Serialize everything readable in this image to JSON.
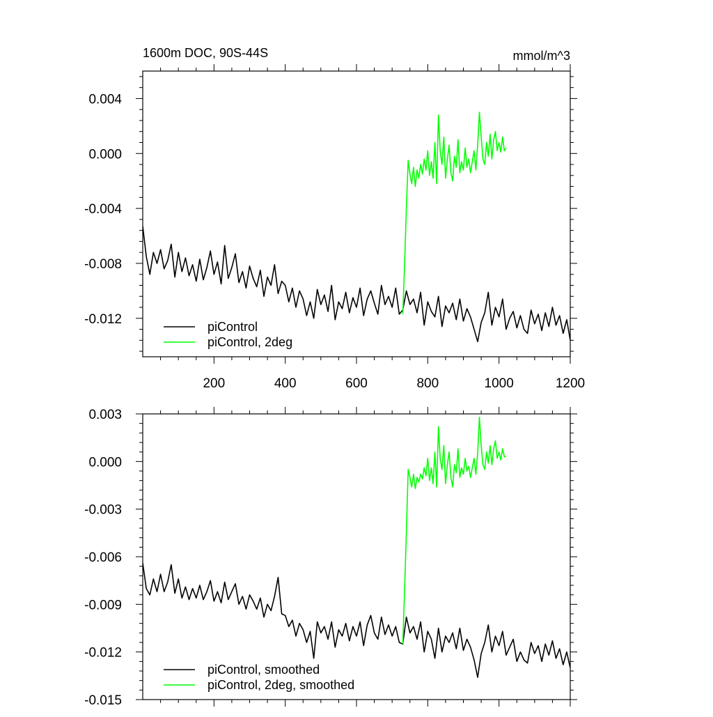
{
  "chart_data": [
    {
      "type": "line",
      "title": "1600m DOC, 90S-44S",
      "units": "mmol/m^3",
      "xlabel": "",
      "ylabel": "",
      "xlim": [
        0,
        1200
      ],
      "ylim": [
        -0.0148,
        0.006
      ],
      "x_ticks": [
        200,
        400,
        600,
        800,
        1000,
        1200
      ],
      "y_ticks": [
        0.004,
        0.0,
        -0.004,
        -0.008,
        -0.012
      ],
      "y_tick_labels": [
        "0.004",
        "0.000",
        "-0.004",
        "-0.008",
        "-0.012"
      ],
      "legend_position": "bottom-left",
      "series": [
        {
          "name": "piControl",
          "color": "#000000",
          "x": [
            0,
            10,
            20,
            30,
            40,
            50,
            60,
            70,
            80,
            90,
            100,
            110,
            120,
            130,
            140,
            150,
            160,
            170,
            180,
            190,
            200,
            210,
            220,
            230,
            240,
            250,
            260,
            270,
            280,
            290,
            300,
            310,
            320,
            330,
            340,
            350,
            360,
            370,
            380,
            390,
            400,
            410,
            420,
            430,
            440,
            450,
            460,
            470,
            480,
            490,
            500,
            510,
            520,
            530,
            540,
            550,
            560,
            570,
            580,
            590,
            600,
            610,
            620,
            630,
            640,
            650,
            660,
            670,
            680,
            690,
            700,
            710,
            720,
            730,
            740,
            750,
            760,
            770,
            780,
            790,
            800,
            810,
            820,
            830,
            840,
            850,
            860,
            870,
            880,
            890,
            900,
            910,
            920,
            930,
            940,
            950,
            960,
            970,
            980,
            990,
            1000,
            1010,
            1020,
            1030,
            1040,
            1050,
            1060,
            1070,
            1080,
            1090,
            1100,
            1110,
            1120,
            1130,
            1140,
            1150,
            1160,
            1170,
            1180,
            1190,
            1200
          ],
          "values": [
            -0.0053,
            -0.0075,
            -0.0088,
            -0.0072,
            -0.008,
            -0.007,
            -0.0084,
            -0.0078,
            -0.0066,
            -0.009,
            -0.0072,
            -0.0086,
            -0.0076,
            -0.0089,
            -0.0081,
            -0.0093,
            -0.0077,
            -0.0092,
            -0.0083,
            -0.0071,
            -0.0088,
            -0.0079,
            -0.0095,
            -0.0067,
            -0.0091,
            -0.0083,
            -0.0073,
            -0.0094,
            -0.0086,
            -0.0098,
            -0.0082,
            -0.0091,
            -0.0097,
            -0.0085,
            -0.0104,
            -0.009,
            -0.0096,
            -0.0081,
            -0.0102,
            -0.0093,
            -0.0096,
            -0.0108,
            -0.0098,
            -0.0112,
            -0.01,
            -0.0106,
            -0.0118,
            -0.0108,
            -0.012,
            -0.0099,
            -0.011,
            -0.0103,
            -0.0115,
            -0.0096,
            -0.0121,
            -0.0108,
            -0.0113,
            -0.0101,
            -0.0116,
            -0.0105,
            -0.0112,
            -0.0098,
            -0.0118,
            -0.0106,
            -0.01,
            -0.0109,
            -0.0117,
            -0.0096,
            -0.011,
            -0.0104,
            -0.0112,
            -0.0098,
            -0.0117,
            -0.0114,
            -0.01,
            -0.011,
            -0.0106,
            -0.0116,
            -0.0101,
            -0.0125,
            -0.0108,
            -0.0115,
            -0.0119,
            -0.0104,
            -0.0126,
            -0.0111,
            -0.0116,
            -0.0109,
            -0.0121,
            -0.0106,
            -0.0122,
            -0.0113,
            -0.0119,
            -0.0128,
            -0.0137,
            -0.0123,
            -0.0116,
            -0.0101,
            -0.0125,
            -0.0112,
            -0.0119,
            -0.0106,
            -0.0128,
            -0.012,
            -0.0115,
            -0.0127,
            -0.0118,
            -0.0128,
            -0.0131,
            -0.0114,
            -0.0124,
            -0.0117,
            -0.0129,
            -0.0116,
            -0.0126,
            -0.0112,
            -0.0125,
            -0.0118,
            -0.0131,
            -0.0121,
            -0.0136
          ]
        },
        {
          "name": "piControl, 2deg",
          "color": "#00ff00",
          "x": [
            730,
            735,
            740,
            745,
            750,
            755,
            760,
            765,
            770,
            775,
            780,
            785,
            790,
            795,
            800,
            805,
            810,
            815,
            820,
            825,
            830,
            835,
            840,
            845,
            850,
            855,
            860,
            865,
            870,
            875,
            880,
            885,
            890,
            895,
            900,
            905,
            910,
            915,
            920,
            925,
            930,
            935,
            940,
            945,
            950,
            955,
            960,
            965,
            970,
            975,
            980,
            985,
            990,
            995,
            1000,
            1005,
            1010,
            1015,
            1020
          ],
          "values": [
            -0.0117,
            -0.008,
            -0.004,
            -0.0005,
            -0.0015,
            -0.0022,
            -0.001,
            -0.0024,
            -0.0012,
            -0.0018,
            -0.0008,
            -0.0015,
            -0.0004,
            -0.0012,
            0.0002,
            -0.0016,
            -0.0006,
            -0.0018,
            0.0008,
            -0.0022,
            0.0028,
            0.0002,
            -0.0008,
            0.0012,
            -0.0018,
            -0.0004,
            0.0006,
            -0.0014,
            -0.002,
            -0.0002,
            -0.001,
            0.001,
            -0.0014,
            -0.0006,
            -0.0012,
            0.0004,
            -0.001,
            -0.0004,
            -0.0014,
            -0.0006,
            0.0002,
            -0.0012,
            0.0006,
            0.003,
            0.0012,
            -0.0004,
            -0.0008,
            0.0008,
            -0.0002,
            0.0014,
            -0.0004,
            0.001,
            0.0016,
            0.0002,
            0.0008,
            0.0001,
            0.0012,
            0.0002,
            0.0004
          ]
        }
      ]
    },
    {
      "type": "line",
      "title": "",
      "xlabel": "",
      "ylabel": "",
      "xlim": [
        0,
        1200
      ],
      "ylim": [
        -0.015,
        0.003
      ],
      "y_ticks": [
        0.003,
        0.0,
        -0.003,
        -0.006,
        -0.009,
        -0.012,
        -0.015
      ],
      "y_tick_labels": [
        "0.003",
        "0.000",
        "-0.003",
        "-0.006",
        "-0.009",
        "-0.012",
        "-0.015"
      ],
      "legend_position": "bottom-left",
      "series": [
        {
          "name": "piControl, smoothed",
          "color": "#000000",
          "x": [
            0,
            10,
            20,
            30,
            40,
            50,
            60,
            70,
            80,
            90,
            100,
            110,
            120,
            130,
            140,
            150,
            160,
            170,
            180,
            190,
            200,
            210,
            220,
            230,
            240,
            250,
            260,
            270,
            280,
            290,
            300,
            310,
            320,
            330,
            340,
            350,
            360,
            370,
            380,
            390,
            400,
            410,
            420,
            430,
            440,
            450,
            460,
            470,
            480,
            490,
            500,
            510,
            520,
            530,
            540,
            550,
            560,
            570,
            580,
            590,
            600,
            610,
            620,
            630,
            640,
            650,
            660,
            670,
            680,
            690,
            700,
            710,
            720,
            730,
            740,
            750,
            760,
            770,
            780,
            790,
            800,
            810,
            820,
            830,
            840,
            850,
            860,
            870,
            880,
            890,
            900,
            910,
            920,
            930,
            940,
            950,
            960,
            970,
            980,
            990,
            1000,
            1010,
            1020,
            1030,
            1040,
            1050,
            1060,
            1070,
            1080,
            1090,
            1100,
            1110,
            1120,
            1130,
            1140,
            1150,
            1160,
            1170,
            1180,
            1190,
            1200
          ],
          "values": [
            -0.0064,
            -0.008,
            -0.0084,
            -0.0074,
            -0.0082,
            -0.0071,
            -0.0082,
            -0.0076,
            -0.0065,
            -0.0083,
            -0.0074,
            -0.0086,
            -0.0079,
            -0.0087,
            -0.008,
            -0.0086,
            -0.0078,
            -0.0087,
            -0.0082,
            -0.0075,
            -0.0088,
            -0.0082,
            -0.0089,
            -0.0076,
            -0.0087,
            -0.0082,
            -0.0077,
            -0.009,
            -0.0085,
            -0.0093,
            -0.0084,
            -0.0088,
            -0.0093,
            -0.0086,
            -0.0098,
            -0.009,
            -0.0094,
            -0.0085,
            -0.0073,
            -0.0096,
            -0.0097,
            -0.0104,
            -0.01,
            -0.011,
            -0.0102,
            -0.0106,
            -0.0114,
            -0.0107,
            -0.0124,
            -0.0101,
            -0.0108,
            -0.0104,
            -0.0112,
            -0.0101,
            -0.0117,
            -0.0106,
            -0.011,
            -0.0102,
            -0.0113,
            -0.0104,
            -0.011,
            -0.0101,
            -0.0116,
            -0.0103,
            -0.0097,
            -0.0108,
            -0.0112,
            -0.0098,
            -0.0109,
            -0.0103,
            -0.011,
            -0.0104,
            -0.0114,
            -0.0115,
            -0.0098,
            -0.0108,
            -0.0104,
            -0.0112,
            -0.0101,
            -0.012,
            -0.0107,
            -0.0112,
            -0.0124,
            -0.0105,
            -0.012,
            -0.011,
            -0.0114,
            -0.0108,
            -0.0118,
            -0.0105,
            -0.0119,
            -0.0112,
            -0.0117,
            -0.0125,
            -0.0136,
            -0.0121,
            -0.0114,
            -0.0103,
            -0.012,
            -0.011,
            -0.0116,
            -0.0107,
            -0.0122,
            -0.0117,
            -0.0112,
            -0.0126,
            -0.012,
            -0.0125,
            -0.0127,
            -0.0114,
            -0.0121,
            -0.0116,
            -0.0126,
            -0.0115,
            -0.0122,
            -0.0113,
            -0.0124,
            -0.0118,
            -0.0128,
            -0.012,
            -0.013
          ]
        },
        {
          "name": "piControl, 2deg, smoothed",
          "color": "#00ff00",
          "x": [
            730,
            735,
            740,
            745,
            750,
            755,
            760,
            765,
            770,
            775,
            780,
            785,
            790,
            795,
            800,
            805,
            810,
            815,
            820,
            825,
            830,
            835,
            840,
            845,
            850,
            855,
            860,
            865,
            870,
            875,
            880,
            885,
            890,
            895,
            900,
            905,
            910,
            915,
            920,
            925,
            930,
            935,
            940,
            945,
            950,
            955,
            960,
            965,
            970,
            975,
            980,
            985,
            990,
            995,
            1000,
            1005,
            1010,
            1015,
            1020
          ],
          "values": [
            -0.0115,
            -0.008,
            -0.0045,
            -0.0005,
            -0.001,
            -0.0016,
            -0.0008,
            -0.0017,
            -0.001,
            -0.0013,
            -0.0008,
            -0.0011,
            -0.0004,
            -0.0009,
            0.0002,
            -0.0012,
            -0.0004,
            -0.0014,
            0.0006,
            -0.0016,
            0.0022,
            0.0002,
            -0.0005,
            0.001,
            -0.0014,
            -0.0002,
            0.0006,
            -0.001,
            -0.0016,
            -0.0002,
            -0.0007,
            0.0008,
            -0.001,
            -0.0004,
            -0.0008,
            0.0002,
            -0.0006,
            -0.0003,
            -0.001,
            -0.0004,
            0.0002,
            -0.0008,
            0.0005,
            0.0028,
            0.001,
            -0.0002,
            -0.0005,
            0.0006,
            -0.0001,
            0.001,
            -0.0002,
            0.0008,
            0.0013,
            0.0002,
            0.0006,
            0.0001,
            0.0008,
            0.0003,
            0.0003
          ]
        }
      ]
    }
  ]
}
